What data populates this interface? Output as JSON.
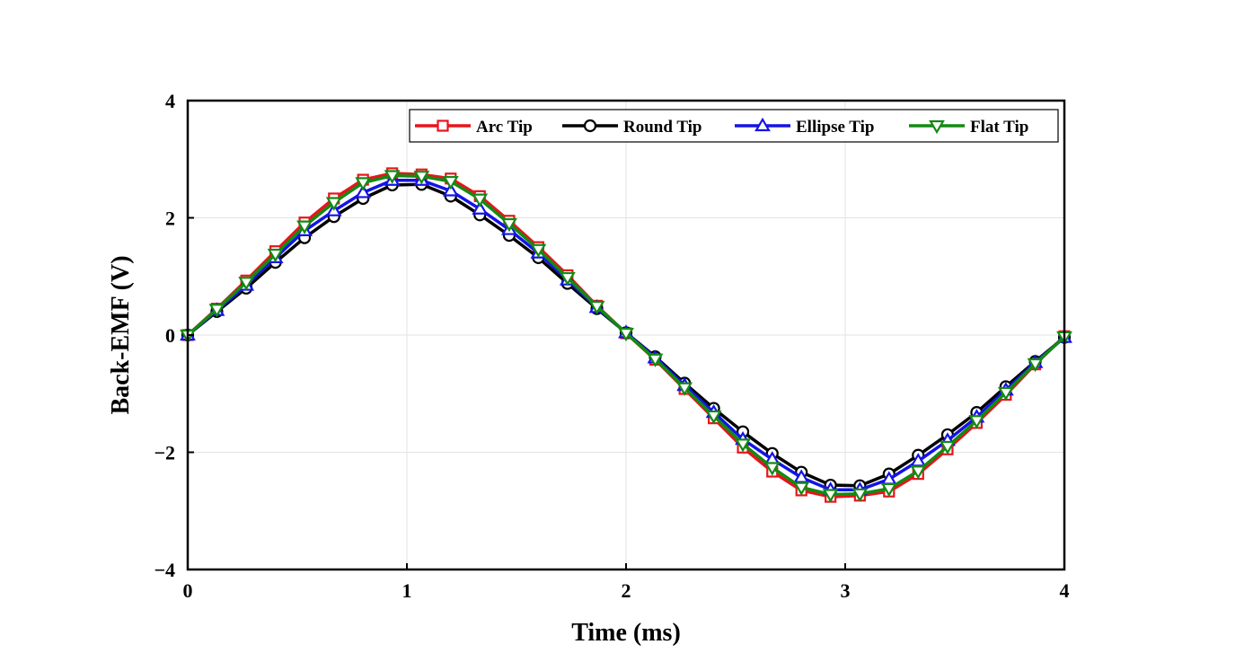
{
  "chart_data": {
    "type": "line",
    "title": "",
    "xlabel": "Time (ms)",
    "ylabel": "Back-EMF (V)",
    "xlim": [
      0,
      4
    ],
    "ylim": [
      -4,
      4
    ],
    "xticks": [
      0,
      1,
      2,
      3,
      4
    ],
    "xtick_labels": [
      "0",
      "1",
      "2",
      "3",
      "4"
    ],
    "yticks": [
      -4,
      -2,
      0,
      2,
      4
    ],
    "ytick_labels": [
      "−4",
      "−2",
      "0",
      "2",
      "4"
    ],
    "grid": true,
    "legend_position": "top-right",
    "x": [
      0,
      0.133,
      0.267,
      0.4,
      0.533,
      0.667,
      0.8,
      0.933,
      1.067,
      1.2,
      1.333,
      1.467,
      1.6,
      1.733,
      1.867,
      2.0,
      2.133,
      2.267,
      2.4,
      2.533,
      2.667,
      2.8,
      2.933,
      3.067,
      3.2,
      3.333,
      3.467,
      3.6,
      3.733,
      3.867,
      4.0
    ],
    "series": [
      {
        "name": "Arc Tip",
        "color": "#e8141c",
        "marker": "square",
        "values": [
          0.0,
          0.45,
          0.93,
          1.43,
          1.92,
          2.33,
          2.65,
          2.76,
          2.74,
          2.67,
          2.37,
          1.95,
          1.5,
          1.02,
          0.5,
          0.03,
          -0.42,
          -0.92,
          -1.42,
          -1.92,
          -2.33,
          -2.65,
          -2.76,
          -2.74,
          -2.67,
          -2.37,
          -1.95,
          -1.5,
          -1.02,
          -0.5,
          -0.02
        ]
      },
      {
        "name": "Round Tip",
        "color": "#000000",
        "marker": "circle",
        "values": [
          0.0,
          0.4,
          0.8,
          1.24,
          1.66,
          2.02,
          2.33,
          2.56,
          2.57,
          2.37,
          2.05,
          1.7,
          1.32,
          0.88,
          0.45,
          0.04,
          -0.37,
          -0.82,
          -1.25,
          -1.65,
          -2.02,
          -2.34,
          -2.56,
          -2.57,
          -2.37,
          -2.05,
          -1.7,
          -1.32,
          -0.88,
          -0.45,
          -0.04
        ]
      },
      {
        "name": "Ellipse Tip",
        "color": "#1414e6",
        "marker": "triangle-up",
        "values": [
          0.0,
          0.42,
          0.85,
          1.32,
          1.78,
          2.12,
          2.43,
          2.64,
          2.64,
          2.46,
          2.15,
          1.8,
          1.4,
          0.94,
          0.47,
          0.04,
          -0.39,
          -0.86,
          -1.32,
          -1.78,
          -2.12,
          -2.43,
          -2.64,
          -2.64,
          -2.46,
          -2.15,
          -1.8,
          -1.4,
          -0.94,
          -0.47,
          -0.04
        ]
      },
      {
        "name": "Flat Tip",
        "color": "#138a13",
        "marker": "triangle-down",
        "values": [
          0.0,
          0.44,
          0.9,
          1.38,
          1.86,
          2.26,
          2.6,
          2.72,
          2.71,
          2.62,
          2.32,
          1.9,
          1.46,
          0.98,
          0.49,
          0.03,
          -0.41,
          -0.9,
          -1.38,
          -1.86,
          -2.26,
          -2.6,
          -2.72,
          -2.71,
          -2.62,
          -2.32,
          -1.9,
          -1.46,
          -0.98,
          -0.49,
          -0.03
        ]
      }
    ]
  }
}
